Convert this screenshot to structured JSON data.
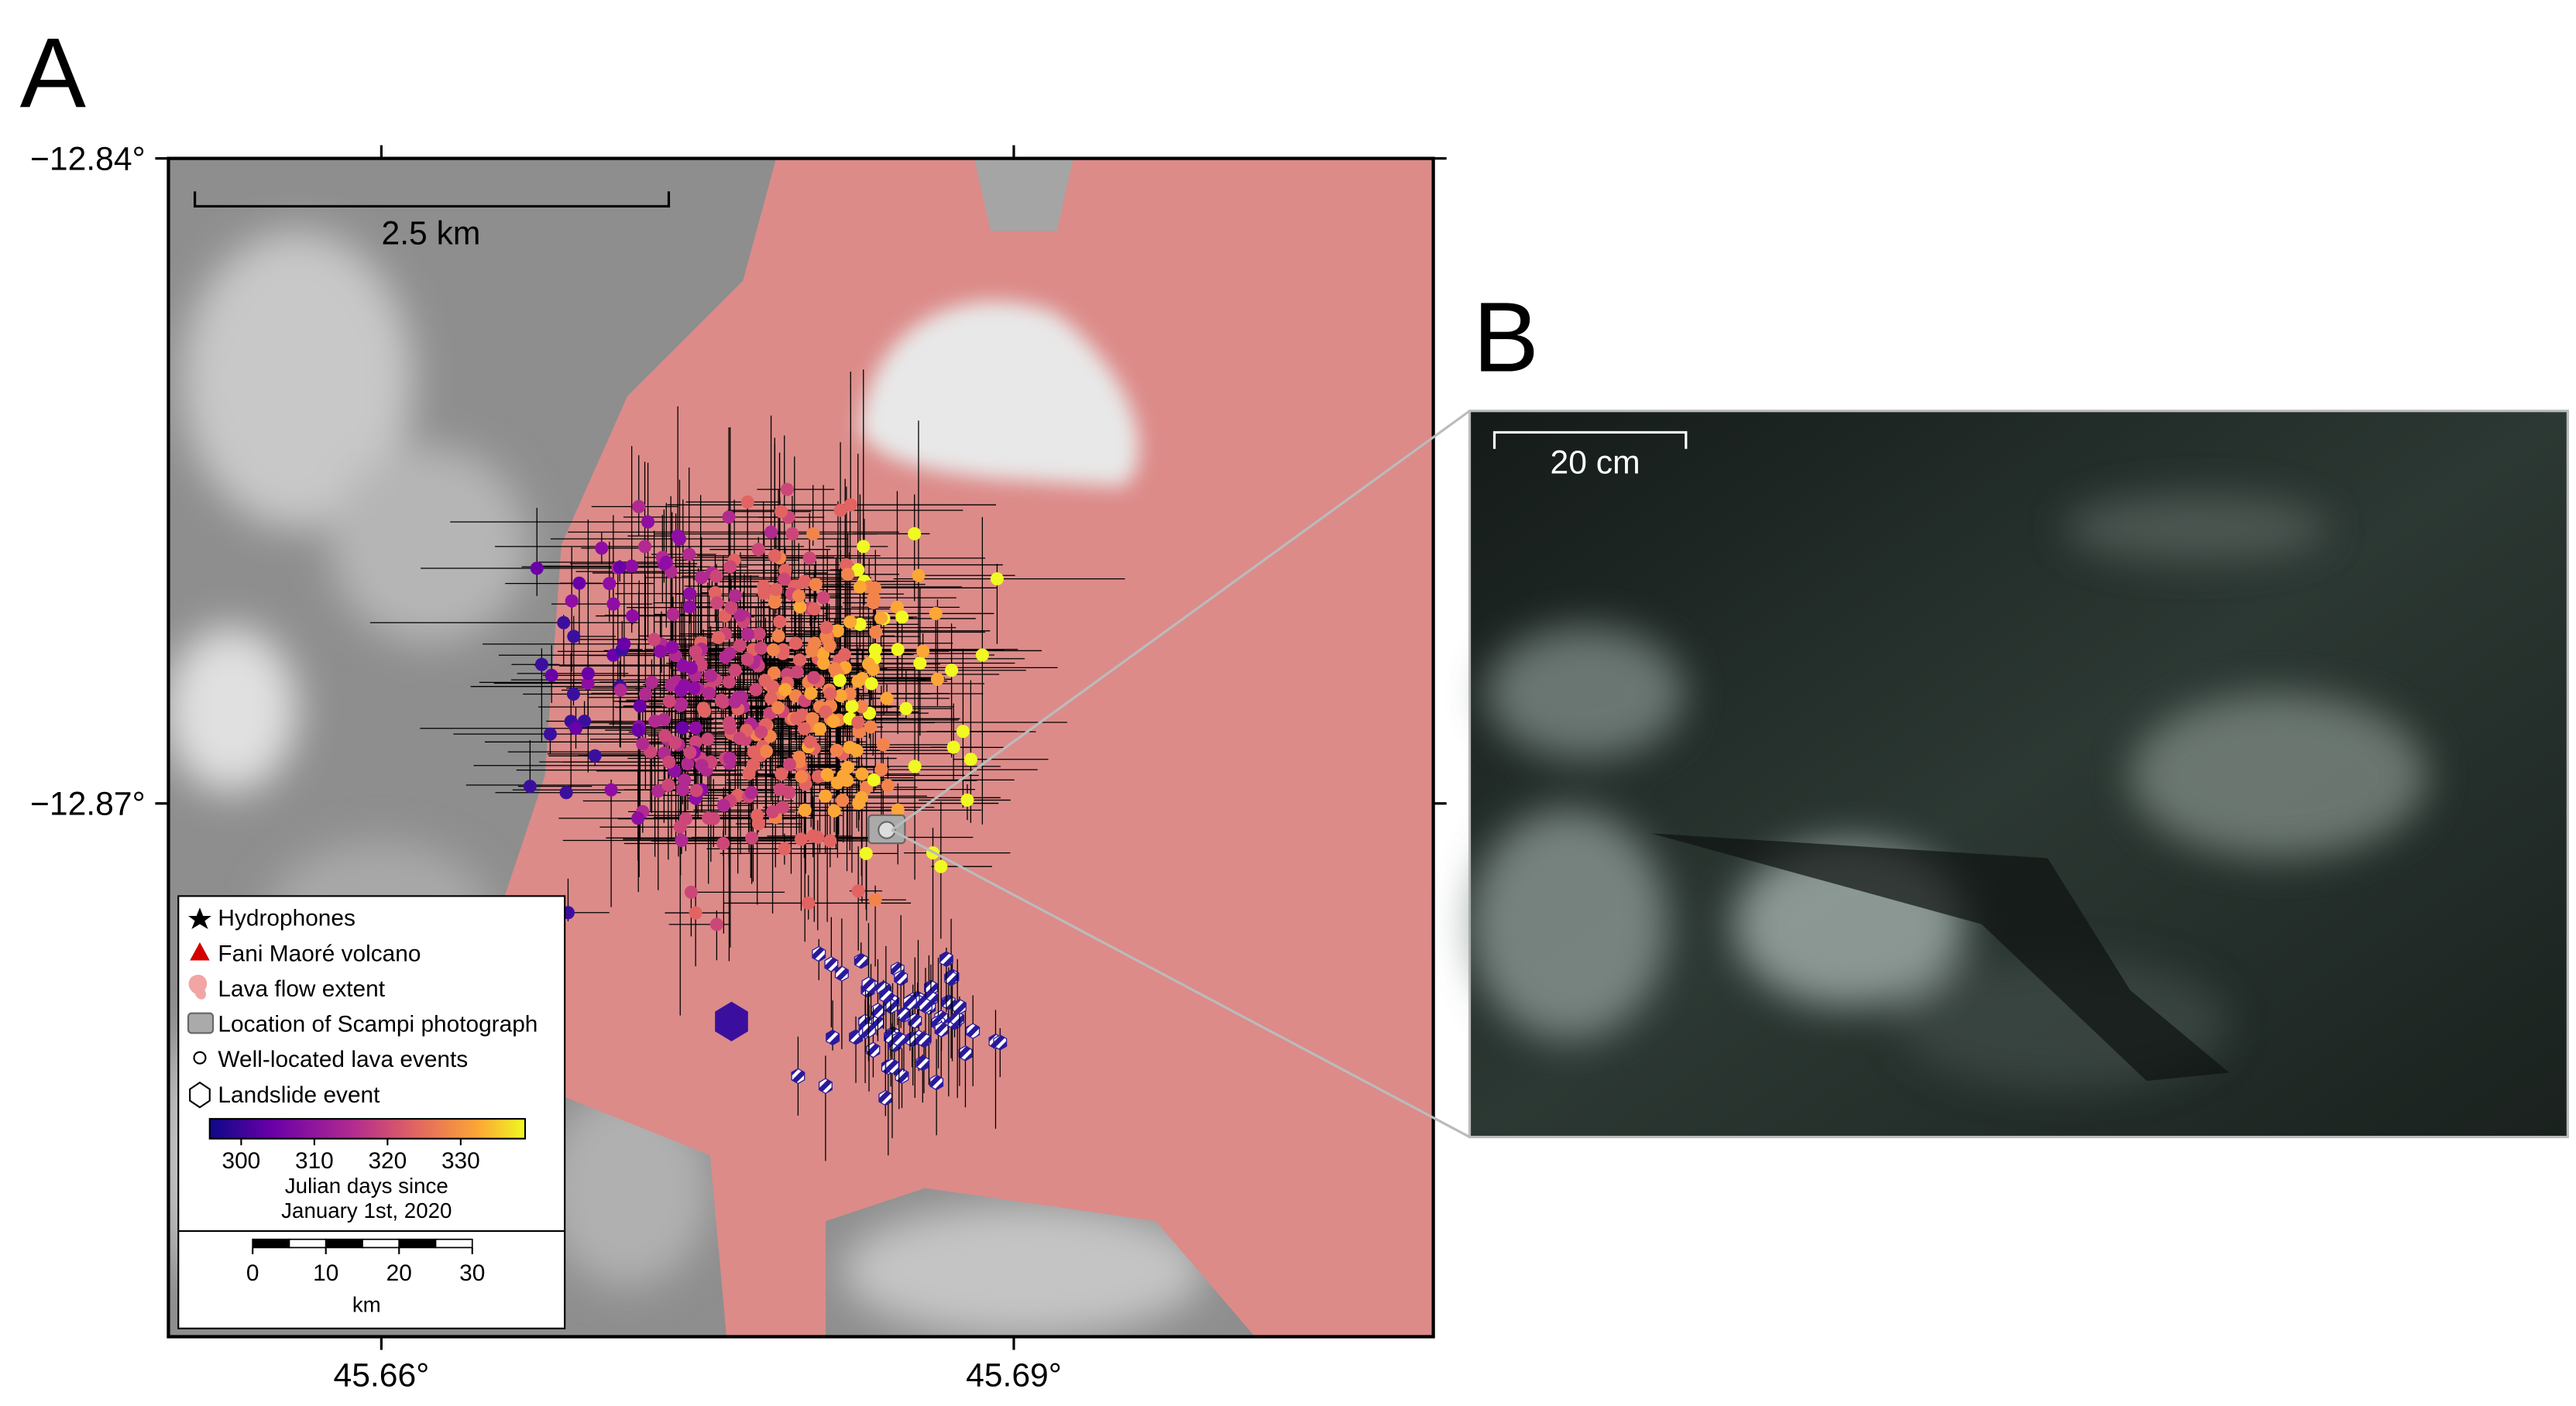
{
  "panels": {
    "a": {
      "label": "A",
      "lat_lim": [
        -12.8948,
        -12.84
      ],
      "lon_lim": [
        45.6499,
        45.7099
      ],
      "lat_ticks": [
        {
          "value": -12.84,
          "label": "−12.84°"
        },
        {
          "value": -12.87,
          "label": "−12.87°"
        }
      ],
      "lon_ticks": [
        {
          "value": 45.66,
          "label": "45.66°"
        },
        {
          "value": 45.69,
          "label": "45.69°"
        }
      ],
      "scale_bar": "2.5 km",
      "legend": {
        "items": [
          "Hydrophones",
          "Fani Maoré volcano",
          "Lava flow extent",
          "Location of Scampi photograph",
          "Well-located lava events",
          "Landslide event"
        ],
        "colorbar": {
          "lim": [
            295.7,
            338.8
          ],
          "ticks": [
            300,
            310,
            320,
            330
          ],
          "caption": [
            "Julian days since",
            "January 1st, 2020"
          ]
        },
        "distance_scale": {
          "lim": [
            0,
            30
          ],
          "ticks": [
            0,
            10,
            20,
            30
          ],
          "unit": "km"
        }
      }
    },
    "b": {
      "label": "B",
      "scale_bar": "20 cm"
    }
  }
}
